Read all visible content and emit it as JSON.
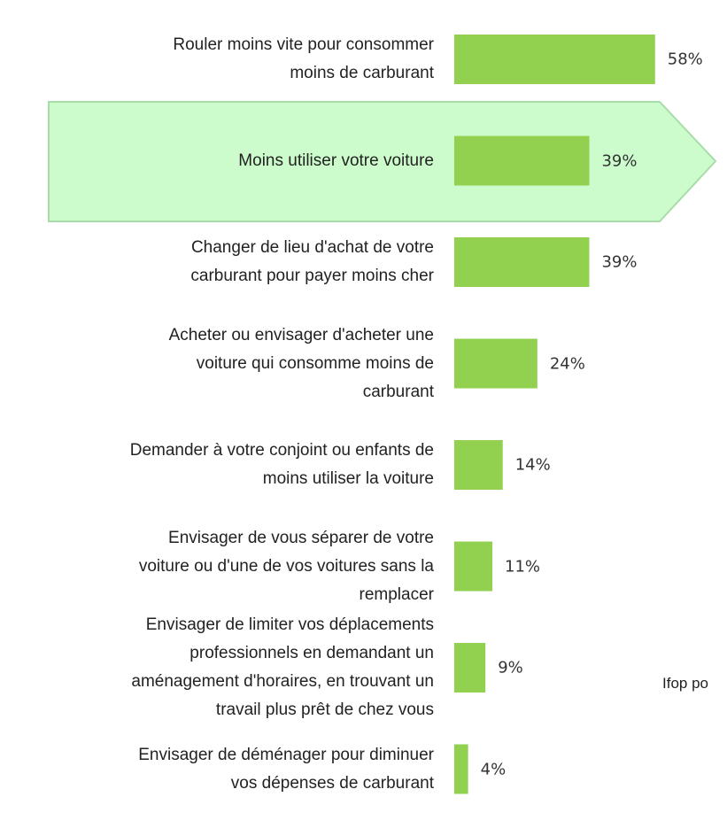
{
  "chart_data": {
    "type": "bar",
    "orientation": "horizontal",
    "categories": [
      "Rouler moins vite pour consommer\nmoins de carburant",
      "Moins utiliser votre voiture",
      "Changer de lieu d'achat de votre\ncarburant pour payer moins cher",
      "Acheter ou envisager d'acheter une\nvoiture qui consomme moins de\ncarburant",
      "Demander à votre conjoint ou enfants de\nmoins utiliser la voiture",
      "Envisager de vous séparer de votre\nvoiture ou d'une de vos voitures sans la\nremplacer",
      "Envisager de limiter vos déplacements\nprofessionnels en demandant un\naménagement d'horaires, en trouvant un\ntravail plus prêt de chez vous",
      "Envisager de déménager pour diminuer\nvos dépenses de carburant"
    ],
    "values": [
      58,
      39,
      39,
      24,
      14,
      11,
      9,
      4
    ],
    "value_labels": [
      "58%",
      "39%",
      "39%",
      "24%",
      "14%",
      "11%",
      "9%",
      "4%"
    ],
    "color": "#92d050",
    "source": "Ifop po"
  }
}
